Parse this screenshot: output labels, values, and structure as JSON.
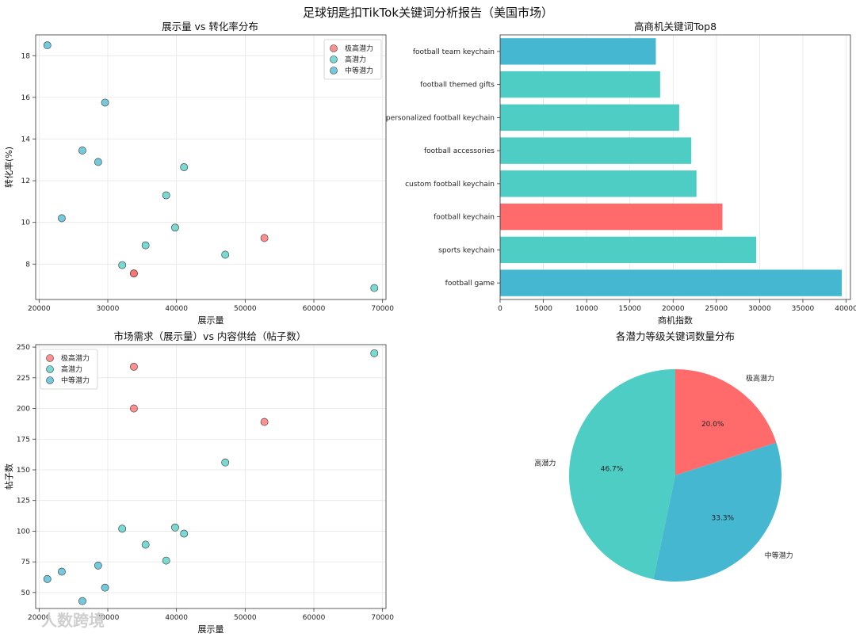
{
  "figure": {
    "title": "足球钥匙扣TikTok关键词分析报告（美国市场）",
    "watermark": "人数跨境"
  },
  "colors": {
    "very_high": "#FF6B6B",
    "high": "#4ECDC4",
    "medium": "#45B7D1"
  },
  "chart_data": [
    {
      "type": "scatter",
      "title": "展示量 vs 转化率分布",
      "xlabel": "展示量",
      "ylabel": "转化率(%)",
      "xlim": [
        19500,
        70500
      ],
      "ylim": [
        6.3,
        19.0
      ],
      "xticks": [
        20000,
        30000,
        40000,
        50000,
        60000,
        70000
      ],
      "yticks": [
        8,
        10,
        12,
        14,
        16,
        18
      ],
      "grid": true,
      "legend_position": "top-right",
      "series": [
        {
          "name": "极高潜力",
          "color": "#FF6B6B",
          "points": [
            [
              52800,
              9.25
            ],
            [
              33800,
              7.55
            ],
            [
              33800,
              7.55
            ]
          ]
        },
        {
          "name": "高潜力",
          "color": "#4ECDC4",
          "points": [
            [
              68800,
              6.85
            ],
            [
              47100,
              8.45
            ],
            [
              41100,
              12.65
            ],
            [
              39800,
              9.75
            ],
            [
              38500,
              11.3
            ],
            [
              35500,
              8.9
            ],
            [
              32100,
              7.95
            ]
          ]
        },
        {
          "name": "中等潜力",
          "color": "#45B7D1",
          "points": [
            [
              21200,
              18.5
            ],
            [
              29600,
              15.75
            ],
            [
              26300,
              13.45
            ],
            [
              28600,
              12.9
            ],
            [
              23300,
              10.2
            ]
          ]
        }
      ]
    },
    {
      "type": "bar",
      "orientation": "horizontal",
      "title": "高商机关键词Top8",
      "xlabel": "商机指数",
      "xlim": [
        0,
        40500
      ],
      "xticks": [
        0,
        5000,
        10000,
        15000,
        20000,
        25000,
        30000,
        35000,
        40000
      ],
      "grid": true,
      "categories": [
        "football team keychain",
        "football themed gifts",
        "personalized football keychain",
        "football accessories",
        "custom football keychain",
        "football keychain",
        "sports keychain",
        "football game"
      ],
      "values": [
        18000,
        18500,
        20700,
        22100,
        22700,
        25700,
        29600,
        39500
      ],
      "bar_levels": [
        "medium",
        "high",
        "high",
        "high",
        "high",
        "very_high",
        "high",
        "medium"
      ]
    },
    {
      "type": "scatter",
      "title": "市场需求（展示量）vs 内容供给（帖子数）",
      "xlabel": "展示量",
      "ylabel": "帖子数",
      "xlim": [
        19500,
        70500
      ],
      "ylim": [
        37,
        252
      ],
      "xticks": [
        20000,
        30000,
        40000,
        50000,
        60000,
        70000
      ],
      "yticks": [
        50,
        75,
        100,
        125,
        150,
        175,
        200,
        225,
        250
      ],
      "grid": true,
      "legend_position": "top-left",
      "series": [
        {
          "name": "极高潜力",
          "color": "#FF6B6B",
          "points": [
            [
              33800,
              234
            ],
            [
              33800,
              200
            ],
            [
              52800,
              189
            ]
          ]
        },
        {
          "name": "高潜力",
          "color": "#4ECDC4",
          "points": [
            [
              68800,
              245
            ],
            [
              47100,
              156
            ],
            [
              39800,
              103
            ],
            [
              41100,
              98
            ],
            [
              32100,
              102
            ],
            [
              35500,
              89
            ],
            [
              38500,
              76
            ]
          ]
        },
        {
          "name": "中等潜力",
          "color": "#45B7D1",
          "points": [
            [
              21200,
              61
            ],
            [
              23300,
              67
            ],
            [
              28600,
              72
            ],
            [
              29600,
              54
            ],
            [
              26300,
              43
            ]
          ]
        }
      ]
    },
    {
      "type": "pie",
      "title": "各潜力等级关键词数量分布",
      "start_angle_deg": 90,
      "slices": [
        {
          "label": "极高潜力",
          "value": 20.0,
          "pct_label": "20.0%",
          "color": "#FF6B6B"
        },
        {
          "label": "中等潜力",
          "value": 33.3,
          "pct_label": "33.3%",
          "color": "#45B7D1"
        },
        {
          "label": "高潜力",
          "value": 46.7,
          "pct_label": "46.7%",
          "color": "#4ECDC4"
        }
      ]
    }
  ]
}
